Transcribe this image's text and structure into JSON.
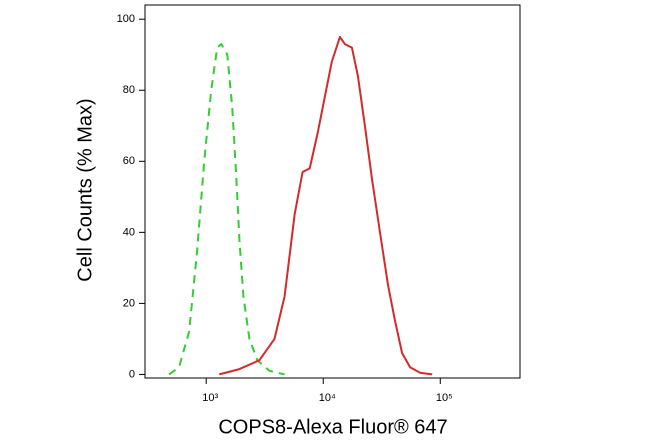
{
  "chart_data": {
    "type": "line",
    "x_label": "COPS8-Alexa Fluor® 647",
    "y_label": "Cell Counts (% Max)",
    "xscale": "log",
    "xlim": [
      300,
      480000
    ],
    "xticks": [
      {
        "value": 1000,
        "label": "10³"
      },
      {
        "value": 10000,
        "label": "10⁴"
      },
      {
        "value": 100000,
        "label": "10⁵"
      }
    ],
    "ylim": [
      -1,
      104
    ],
    "yticks": [
      0,
      20,
      40,
      60,
      80,
      100
    ],
    "series": [
      {
        "color": "#33cc33",
        "dash": true,
        "x": [
          481,
          586,
          715,
          837,
          962,
          1104,
          1242,
          1345,
          1514,
          1672,
          1810,
          1920,
          2078,
          2339,
          2741,
          3474,
          4673
        ],
        "values": [
          0,
          2,
          12,
          35,
          60,
          80,
          92,
          93,
          90,
          75,
          55,
          38,
          22,
          10,
          4,
          1,
          0
        ]
      },
      {
        "color": "#d42a2a",
        "dash": false,
        "x": [
          1294,
          1920,
          2851,
          3837,
          4673,
          5693,
          6668,
          7659,
          8974,
          10300,
          11830,
          13870,
          15310,
          17590,
          19780,
          22710,
          26080,
          30550,
          35810,
          41110,
          47210,
          55210,
          67300,
          85320
        ],
        "values": [
          0,
          1.5,
          4,
          10,
          22,
          45,
          57,
          58,
          68,
          78,
          88,
          95,
          93,
          92,
          84,
          70,
          55,
          40,
          25,
          15,
          6,
          2,
          0.5,
          0
        ]
      }
    ]
  }
}
